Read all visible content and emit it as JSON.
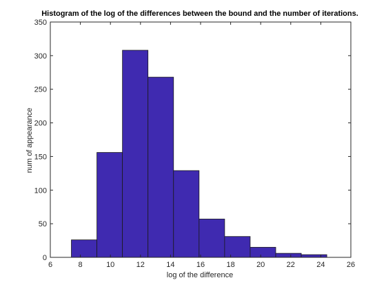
{
  "chart_data": {
    "type": "bar",
    "title": "Histogram of the log of the differences between the bound and the number of iterations.",
    "xlabel": "log of the difference",
    "ylabel": "num of appearance",
    "xlim": [
      6,
      26
    ],
    "ylim": [
      0,
      350
    ],
    "xticks": [
      6,
      8,
      10,
      12,
      14,
      16,
      18,
      20,
      22,
      24,
      26
    ],
    "yticks": [
      0,
      50,
      100,
      150,
      200,
      250,
      300,
      350
    ],
    "bins": [
      {
        "start": 7.4,
        "end": 9.1,
        "count": 26
      },
      {
        "start": 9.1,
        "end": 10.8,
        "count": 156
      },
      {
        "start": 10.8,
        "end": 12.5,
        "count": 308
      },
      {
        "start": 12.5,
        "end": 14.2,
        "count": 268
      },
      {
        "start": 14.2,
        "end": 15.9,
        "count": 129
      },
      {
        "start": 15.9,
        "end": 17.6,
        "count": 57
      },
      {
        "start": 17.6,
        "end": 19.3,
        "count": 31
      },
      {
        "start": 19.3,
        "end": 21.0,
        "count": 15
      },
      {
        "start": 21.0,
        "end": 22.7,
        "count": 6
      },
      {
        "start": 22.7,
        "end": 24.4,
        "count": 4
      }
    ],
    "bar_color": "#3f2ab0",
    "edge_color": "#1a1a1a",
    "grid": false,
    "box": true
  }
}
